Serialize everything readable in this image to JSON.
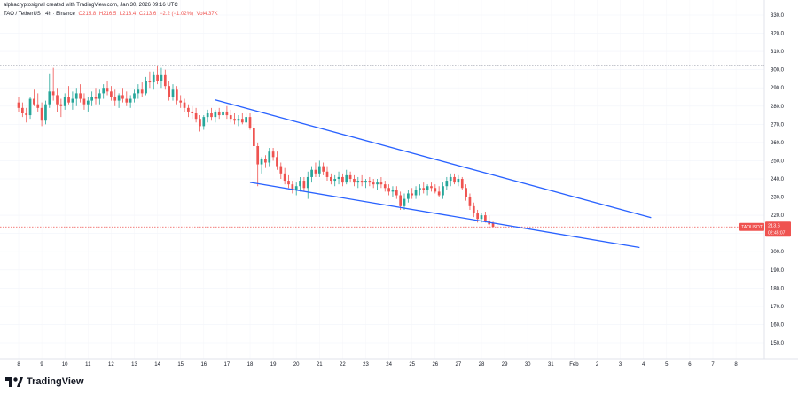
{
  "header": {
    "credit": "alphacryptosignal created with TradingView.com, Jan 30, 2026 09:16 UTC",
    "symbol": "TAO / TetherUS · 4h · Binance",
    "ohlc_o": "O215.8",
    "ohlc_h": "H216.5",
    "ohlc_l": "L213.4",
    "ohlc_c": "C213.6",
    "change": "−2.2 (−1.02%)",
    "vol": "Vol4.37K"
  },
  "footer": {
    "brand": "TradingView"
  },
  "colors": {
    "up": "#26a69a",
    "down": "#ef5350",
    "trendline": "#2962ff",
    "price_tag": "#ef5350"
  },
  "chart_data": {
    "type": "candlestick",
    "title": "",
    "price_axis": {
      "min": 145,
      "max": 330,
      "ticks": [
        "330.0",
        "320.0",
        "310.0",
        "300.0",
        "290.0",
        "280.0",
        "270.0",
        "260.0",
        "250.0",
        "240.0",
        "230.0",
        "220.0",
        "210.0",
        "200.0",
        "190.0",
        "180.0",
        "170.0",
        "160.0",
        "150.0"
      ]
    },
    "time_axis": {
      "labels": [
        "8",
        "9",
        "10",
        "11",
        "12",
        "13",
        "14",
        "15",
        "16",
        "17",
        "18",
        "19",
        "20",
        "21",
        "22",
        "23",
        "24",
        "25",
        "26",
        "27",
        "28",
        "29",
        "30",
        "31",
        "Feb",
        "2",
        "3",
        "4",
        "5",
        "6",
        "7",
        "8"
      ]
    },
    "last_price": {
      "symbol": "TAOUSDT",
      "value": "213.6",
      "countdown": "02:45:07",
      "price": 213.6
    },
    "reference_line": 302.5,
    "trendlines": [
      {
        "name": "upper",
        "points": [
          [
            "Jan 16 12:00",
            283.4
          ],
          [
            "Feb 4 08:00",
            218.7
          ]
        ]
      },
      {
        "name": "lower",
        "points": [
          [
            "Jan 18 00:00",
            238.1
          ],
          [
            "Feb 3 20:00",
            202.3
          ]
        ]
      }
    ],
    "candles": [
      {
        "t": "Jan 8 00:00",
        "o": 282,
        "h": 285,
        "l": 277,
        "c": 279
      },
      {
        "t": "Jan 8 04:00",
        "o": 279,
        "h": 282,
        "l": 274,
        "c": 276
      },
      {
        "t": "Jan 8 08:00",
        "o": 276,
        "h": 279,
        "l": 271,
        "c": 275
      },
      {
        "t": "Jan 8 12:00",
        "o": 275,
        "h": 285,
        "l": 273,
        "c": 284
      },
      {
        "t": "Jan 8 16:00",
        "o": 284,
        "h": 289,
        "l": 280,
        "c": 281
      },
      {
        "t": "Jan 8 20:00",
        "o": 281,
        "h": 287,
        "l": 277,
        "c": 279
      },
      {
        "t": "Jan 9 00:00",
        "o": 279,
        "h": 282,
        "l": 269,
        "c": 272
      },
      {
        "t": "Jan 9 04:00",
        "o": 272,
        "h": 283,
        "l": 270,
        "c": 281
      },
      {
        "t": "Jan 9 08:00",
        "o": 281,
        "h": 298,
        "l": 279,
        "c": 288
      },
      {
        "t": "Jan 9 12:00",
        "o": 288,
        "h": 301,
        "l": 283,
        "c": 286
      },
      {
        "t": "Jan 9 16:00",
        "o": 286,
        "h": 290,
        "l": 277,
        "c": 281
      },
      {
        "t": "Jan 9 20:00",
        "o": 281,
        "h": 284,
        "l": 274,
        "c": 280
      },
      {
        "t": "Jan 10 00:00",
        "o": 280,
        "h": 287,
        "l": 278,
        "c": 285
      },
      {
        "t": "Jan 10 04:00",
        "o": 285,
        "h": 291,
        "l": 281,
        "c": 282
      },
      {
        "t": "Jan 10 08:00",
        "o": 282,
        "h": 288,
        "l": 278,
        "c": 284
      },
      {
        "t": "Jan 10 12:00",
        "o": 284,
        "h": 290,
        "l": 280,
        "c": 287
      },
      {
        "t": "Jan 10 16:00",
        "o": 287,
        "h": 292,
        "l": 282,
        "c": 284
      },
      {
        "t": "Jan 10 20:00",
        "o": 284,
        "h": 287,
        "l": 278,
        "c": 281
      },
      {
        "t": "Jan 11 00:00",
        "o": 281,
        "h": 285,
        "l": 277,
        "c": 283
      },
      {
        "t": "Jan 11 04:00",
        "o": 283,
        "h": 288,
        "l": 280,
        "c": 285
      },
      {
        "t": "Jan 11 08:00",
        "o": 285,
        "h": 290,
        "l": 281,
        "c": 284
      },
      {
        "t": "Jan 11 12:00",
        "o": 284,
        "h": 289,
        "l": 281,
        "c": 287
      },
      {
        "t": "Jan 11 16:00",
        "o": 287,
        "h": 292,
        "l": 284,
        "c": 290
      },
      {
        "t": "Jan 11 20:00",
        "o": 290,
        "h": 294,
        "l": 286,
        "c": 288
      },
      {
        "t": "Jan 12 00:00",
        "o": 288,
        "h": 291,
        "l": 283,
        "c": 285
      },
      {
        "t": "Jan 12 04:00",
        "o": 285,
        "h": 289,
        "l": 280,
        "c": 283
      },
      {
        "t": "Jan 12 08:00",
        "o": 283,
        "h": 287,
        "l": 279,
        "c": 286
      },
      {
        "t": "Jan 12 12:00",
        "o": 286,
        "h": 290,
        "l": 282,
        "c": 284
      },
      {
        "t": "Jan 12 16:00",
        "o": 284,
        "h": 288,
        "l": 280,
        "c": 282
      },
      {
        "t": "Jan 12 20:00",
        "o": 282,
        "h": 286,
        "l": 279,
        "c": 284
      },
      {
        "t": "Jan 13 00:00",
        "o": 284,
        "h": 289,
        "l": 282,
        "c": 287
      },
      {
        "t": "Jan 13 04:00",
        "o": 287,
        "h": 292,
        "l": 284,
        "c": 289
      },
      {
        "t": "Jan 13 08:00",
        "o": 289,
        "h": 293,
        "l": 285,
        "c": 287
      },
      {
        "t": "Jan 13 12:00",
        "o": 287,
        "h": 296,
        "l": 286,
        "c": 294
      },
      {
        "t": "Jan 13 16:00",
        "o": 294,
        "h": 299,
        "l": 290,
        "c": 293
      },
      {
        "t": "Jan 13 20:00",
        "o": 293,
        "h": 299,
        "l": 289,
        "c": 297
      },
      {
        "t": "Jan 14 00:00",
        "o": 297,
        "h": 302,
        "l": 292,
        "c": 294
      },
      {
        "t": "Jan 14 04:00",
        "o": 294,
        "h": 301,
        "l": 290,
        "c": 297
      },
      {
        "t": "Jan 14 08:00",
        "o": 297,
        "h": 300,
        "l": 289,
        "c": 291
      },
      {
        "t": "Jan 14 12:00",
        "o": 291,
        "h": 294,
        "l": 283,
        "c": 285
      },
      {
        "t": "Jan 14 16:00",
        "o": 285,
        "h": 292,
        "l": 283,
        "c": 289
      },
      {
        "t": "Jan 14 20:00",
        "o": 289,
        "h": 291,
        "l": 281,
        "c": 283
      },
      {
        "t": "Jan 15 00:00",
        "o": 283,
        "h": 286,
        "l": 279,
        "c": 282
      },
      {
        "t": "Jan 15 04:00",
        "o": 282,
        "h": 284,
        "l": 277,
        "c": 279
      },
      {
        "t": "Jan 15 08:00",
        "o": 279,
        "h": 281,
        "l": 274,
        "c": 277
      },
      {
        "t": "Jan 15 12:00",
        "o": 277,
        "h": 280,
        "l": 273,
        "c": 276
      },
      {
        "t": "Jan 15 16:00",
        "o": 276,
        "h": 279,
        "l": 271,
        "c": 273
      },
      {
        "t": "Jan 15 20:00",
        "o": 273,
        "h": 275,
        "l": 266,
        "c": 269
      },
      {
        "t": "Jan 16 00:00",
        "o": 269,
        "h": 275,
        "l": 267,
        "c": 274
      },
      {
        "t": "Jan 16 04:00",
        "o": 274,
        "h": 278,
        "l": 271,
        "c": 276
      },
      {
        "t": "Jan 16 08:00",
        "o": 276,
        "h": 279,
        "l": 272,
        "c": 274
      },
      {
        "t": "Jan 16 12:00",
        "o": 274,
        "h": 278,
        "l": 271,
        "c": 277
      },
      {
        "t": "Jan 16 16:00",
        "o": 277,
        "h": 279,
        "l": 273,
        "c": 275
      },
      {
        "t": "Jan 16 20:00",
        "o": 275,
        "h": 279,
        "l": 272,
        "c": 277
      },
      {
        "t": "Jan 17 00:00",
        "o": 277,
        "h": 280,
        "l": 273,
        "c": 275
      },
      {
        "t": "Jan 17 04:00",
        "o": 275,
        "h": 278,
        "l": 271,
        "c": 273
      },
      {
        "t": "Jan 17 08:00",
        "o": 273,
        "h": 276,
        "l": 270,
        "c": 272
      },
      {
        "t": "Jan 17 12:00",
        "o": 272,
        "h": 275,
        "l": 269,
        "c": 273
      },
      {
        "t": "Jan 17 16:00",
        "o": 273,
        "h": 276,
        "l": 270,
        "c": 271
      },
      {
        "t": "Jan 17 20:00",
        "o": 271,
        "h": 276,
        "l": 269,
        "c": 274
      },
      {
        "t": "Jan 18 00:00",
        "o": 274,
        "h": 276,
        "l": 267,
        "c": 268
      },
      {
        "t": "Jan 18 04:00",
        "o": 268,
        "h": 270,
        "l": 256,
        "c": 258
      },
      {
        "t": "Jan 18 08:00",
        "o": 258,
        "h": 260,
        "l": 236,
        "c": 248
      },
      {
        "t": "Jan 18 12:00",
        "o": 248,
        "h": 252,
        "l": 243,
        "c": 251
      },
      {
        "t": "Jan 18 16:00",
        "o": 251,
        "h": 253,
        "l": 246,
        "c": 249
      },
      {
        "t": "Jan 18 20:00",
        "o": 249,
        "h": 257,
        "l": 247,
        "c": 255
      },
      {
        "t": "Jan 19 00:00",
        "o": 255,
        "h": 257,
        "l": 250,
        "c": 252
      },
      {
        "t": "Jan 19 04:00",
        "o": 252,
        "h": 255,
        "l": 245,
        "c": 247
      },
      {
        "t": "Jan 19 08:00",
        "o": 247,
        "h": 249,
        "l": 240,
        "c": 243
      },
      {
        "t": "Jan 19 12:00",
        "o": 243,
        "h": 246,
        "l": 237,
        "c": 239
      },
      {
        "t": "Jan 19 16:00",
        "o": 239,
        "h": 242,
        "l": 235,
        "c": 237
      },
      {
        "t": "Jan 19 20:00",
        "o": 237,
        "h": 239,
        "l": 232,
        "c": 234
      },
      {
        "t": "Jan 20 00:00",
        "o": 234,
        "h": 238,
        "l": 231,
        "c": 236
      },
      {
        "t": "Jan 20 04:00",
        "o": 236,
        "h": 241,
        "l": 233,
        "c": 239
      },
      {
        "t": "Jan 20 08:00",
        "o": 239,
        "h": 241,
        "l": 233,
        "c": 235
      },
      {
        "t": "Jan 20 12:00",
        "o": 235,
        "h": 244,
        "l": 229,
        "c": 241
      },
      {
        "t": "Jan 20 16:00",
        "o": 241,
        "h": 247,
        "l": 238,
        "c": 245
      },
      {
        "t": "Jan 20 20:00",
        "o": 245,
        "h": 249,
        "l": 241,
        "c": 243
      },
      {
        "t": "Jan 21 00:00",
        "o": 243,
        "h": 250,
        "l": 241,
        "c": 247
      },
      {
        "t": "Jan 21 04:00",
        "o": 247,
        "h": 249,
        "l": 242,
        "c": 244
      },
      {
        "t": "Jan 21 08:00",
        "o": 244,
        "h": 247,
        "l": 239,
        "c": 241
      },
      {
        "t": "Jan 21 12:00",
        "o": 241,
        "h": 243,
        "l": 237,
        "c": 239
      },
      {
        "t": "Jan 21 16:00",
        "o": 239,
        "h": 242,
        "l": 236,
        "c": 240
      },
      {
        "t": "Jan 21 20:00",
        "o": 240,
        "h": 244,
        "l": 237,
        "c": 241
      },
      {
        "t": "Jan 22 00:00",
        "o": 241,
        "h": 243,
        "l": 236,
        "c": 238
      },
      {
        "t": "Jan 22 04:00",
        "o": 238,
        "h": 245,
        "l": 237,
        "c": 242
      },
      {
        "t": "Jan 22 08:00",
        "o": 242,
        "h": 244,
        "l": 238,
        "c": 240
      },
      {
        "t": "Jan 22 12:00",
        "o": 240,
        "h": 242,
        "l": 236,
        "c": 238
      },
      {
        "t": "Jan 22 16:00",
        "o": 238,
        "h": 241,
        "l": 235,
        "c": 239
      },
      {
        "t": "Jan 22 20:00",
        "o": 239,
        "h": 242,
        "l": 236,
        "c": 238
      },
      {
        "t": "Jan 23 00:00",
        "o": 238,
        "h": 240,
        "l": 235,
        "c": 239
      },
      {
        "t": "Jan 23 04:00",
        "o": 239,
        "h": 241,
        "l": 236,
        "c": 238
      },
      {
        "t": "Jan 23 08:00",
        "o": 238,
        "h": 240,
        "l": 235,
        "c": 237
      },
      {
        "t": "Jan 23 12:00",
        "o": 237,
        "h": 240,
        "l": 234,
        "c": 238
      },
      {
        "t": "Jan 23 16:00",
        "o": 238,
        "h": 241,
        "l": 235,
        "c": 237
      },
      {
        "t": "Jan 23 20:00",
        "o": 237,
        "h": 239,
        "l": 233,
        "c": 235
      },
      {
        "t": "Jan 24 00:00",
        "o": 235,
        "h": 237,
        "l": 231,
        "c": 233
      },
      {
        "t": "Jan 24 04:00",
        "o": 233,
        "h": 236,
        "l": 230,
        "c": 234
      },
      {
        "t": "Jan 24 08:00",
        "o": 234,
        "h": 236,
        "l": 229,
        "c": 231
      },
      {
        "t": "Jan 24 12:00",
        "o": 231,
        "h": 233,
        "l": 223,
        "c": 225
      },
      {
        "t": "Jan 24 16:00",
        "o": 225,
        "h": 232,
        "l": 223,
        "c": 229
      },
      {
        "t": "Jan 24 20:00",
        "o": 229,
        "h": 234,
        "l": 227,
        "c": 232
      },
      {
        "t": "Jan 25 00:00",
        "o": 232,
        "h": 235,
        "l": 229,
        "c": 231
      },
      {
        "t": "Jan 25 04:00",
        "o": 231,
        "h": 236,
        "l": 229,
        "c": 234
      },
      {
        "t": "Jan 25 08:00",
        "o": 234,
        "h": 237,
        "l": 231,
        "c": 235
      },
      {
        "t": "Jan 25 12:00",
        "o": 235,
        "h": 238,
        "l": 232,
        "c": 234
      },
      {
        "t": "Jan 25 16:00",
        "o": 234,
        "h": 237,
        "l": 231,
        "c": 236
      },
      {
        "t": "Jan 25 20:00",
        "o": 236,
        "h": 238,
        "l": 233,
        "c": 235
      },
      {
        "t": "Jan 26 00:00",
        "o": 235,
        "h": 237,
        "l": 232,
        "c": 233
      },
      {
        "t": "Jan 26 04:00",
        "o": 233,
        "h": 236,
        "l": 230,
        "c": 231
      },
      {
        "t": "Jan 26 08:00",
        "o": 231,
        "h": 238,
        "l": 229,
        "c": 236
      },
      {
        "t": "Jan 26 12:00",
        "o": 236,
        "h": 241,
        "l": 234,
        "c": 239
      },
      {
        "t": "Jan 26 16:00",
        "o": 239,
        "h": 243,
        "l": 236,
        "c": 241
      },
      {
        "t": "Jan 26 20:00",
        "o": 241,
        "h": 243,
        "l": 237,
        "c": 238
      },
      {
        "t": "Jan 27 00:00",
        "o": 238,
        "h": 242,
        "l": 236,
        "c": 240
      },
      {
        "t": "Jan 27 04:00",
        "o": 240,
        "h": 241,
        "l": 234,
        "c": 235
      },
      {
        "t": "Jan 27 08:00",
        "o": 235,
        "h": 237,
        "l": 228,
        "c": 230
      },
      {
        "t": "Jan 27 12:00",
        "o": 230,
        "h": 232,
        "l": 223,
        "c": 225
      },
      {
        "t": "Jan 27 16:00",
        "o": 225,
        "h": 227,
        "l": 219,
        "c": 221
      },
      {
        "t": "Jan 27 20:00",
        "o": 221,
        "h": 223,
        "l": 216,
        "c": 218
      },
      {
        "t": "Jan 28 00:00",
        "o": 218,
        "h": 221,
        "l": 216,
        "c": 220
      },
      {
        "t": "Jan 28 04:00",
        "o": 220,
        "h": 222,
        "l": 216,
        "c": 217
      },
      {
        "t": "Jan 28 08:00",
        "o": 217,
        "h": 220,
        "l": 213,
        "c": 215
      },
      {
        "t": "Jan 28 12:00",
        "o": 215.8,
        "h": 216.5,
        "l": 213.4,
        "c": 213.6
      }
    ]
  }
}
